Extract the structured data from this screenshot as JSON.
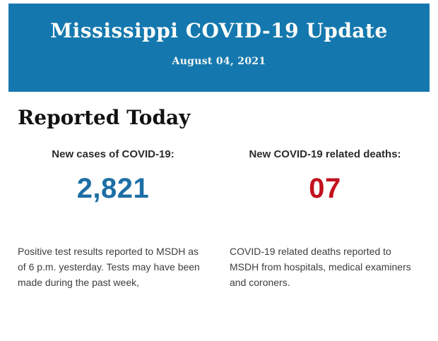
{
  "header": {
    "title": "Mississippi COVID-19 Update",
    "date": "August 04, 2021"
  },
  "section": {
    "heading": "Reported Today"
  },
  "stats": {
    "cases": {
      "label": "New cases of COVID-19:",
      "value": "2,821",
      "description": "Positive test results reported to MSDH as of 6 p.m. yesterday. Tests may have been made during the past week,"
    },
    "deaths": {
      "label": "New COVID-19 related deaths:",
      "value": "07",
      "description": "COVID-19 related deaths reported to MSDH from hospitals, medical examiners and coroners."
    }
  },
  "colors": {
    "header_background": "#1478af",
    "header_text": "#fdfdfa",
    "cases_value": "#1d6fa5",
    "deaths_value": "#c2121e",
    "body_text": "#3d3d3d"
  }
}
